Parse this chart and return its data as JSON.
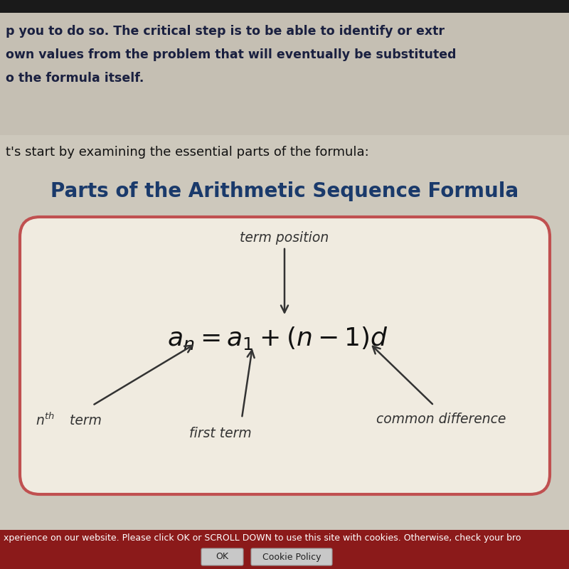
{
  "bg_color": "#cdc8bc",
  "top_section_color": "#c5bfb3",
  "title": "Parts of the Arithmetic Sequence Formula",
  "title_color": "#1a3a6b",
  "label_term_position": "term position",
  "label_first_term": "first term",
  "label_common_diff": "common difference",
  "text_line1": "p you to do so. The critical step is to be able to identify or extr",
  "text_line2": "own values from the problem that will eventually be substituted",
  "text_line3": "o the formula itself.",
  "intro_line": "t's start by examining the essential parts of the formula:",
  "footer": "xperience on our website. Please click OK or SCROLL DOWN to use this site with cookies. Otherwise, check your bro",
  "box_face_color": "#f0ebe0",
  "box_edge_color": "#c05050",
  "arrow_color": "#333333",
  "label_color": "#333333",
  "formula_color": "#111111",
  "text_color": "#111111",
  "footer_bg": "#8b1a1a",
  "footer_text_color": "#ffffff",
  "dark_bar_color": "#1a1a1a",
  "top_text_bold": true
}
